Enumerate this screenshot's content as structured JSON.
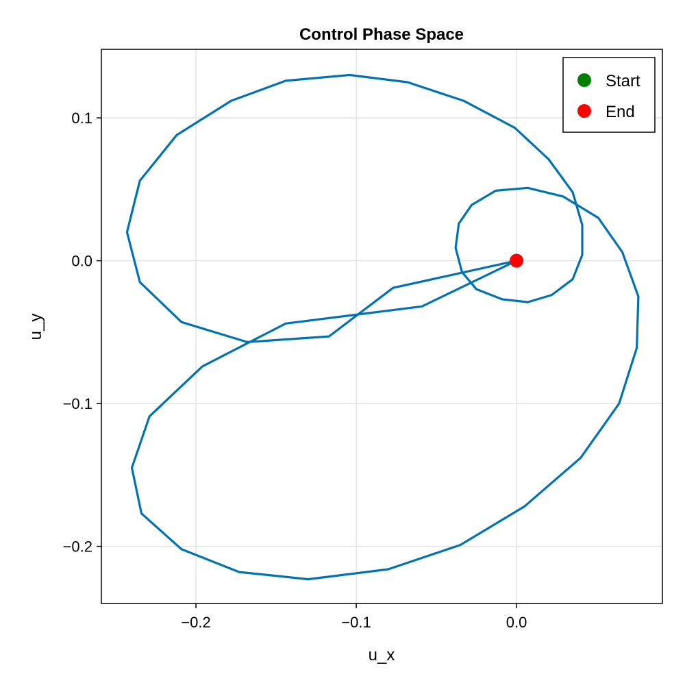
{
  "chart_data": {
    "type": "line",
    "title": "Control Phase Space",
    "xlabel": "u_x",
    "ylabel": "u_y",
    "xlim": [
      -0.259,
      0.091
    ],
    "ylim": [
      -0.24,
      0.148
    ],
    "xticks": [
      -0.2,
      -0.1,
      0.0
    ],
    "xtick_labels": [
      "−0.2",
      "−0.1",
      "0.0"
    ],
    "yticks": [
      -0.2,
      -0.1,
      0.0,
      0.1
    ],
    "ytick_labels": [
      "−0.2",
      "−0.1",
      "0.0",
      "0.1"
    ],
    "grid": true,
    "legend_position": "top-right",
    "colors": {
      "line": "#0072b2",
      "start": "#008000",
      "end": "#ff0000"
    },
    "series": [
      {
        "x": [
          0.0,
          -0.077,
          -0.117,
          -0.168,
          -0.209,
          -0.235,
          -0.243,
          -0.235,
          -0.212,
          -0.178,
          -0.144,
          -0.104,
          -0.068,
          -0.033,
          -0.001,
          0.02,
          0.035,
          0.041,
          0.041,
          0.035,
          0.022,
          0.007,
          -0.009,
          -0.025,
          -0.034,
          -0.038,
          -0.036,
          -0.028,
          -0.013,
          0.007,
          0.029,
          0.051,
          0.066,
          0.076,
          0.075,
          0.064,
          0.04,
          0.005,
          -0.035,
          -0.08,
          -0.13,
          -0.173,
          -0.209,
          -0.234,
          -0.24,
          -0.229,
          -0.196,
          -0.144,
          -0.059,
          0.0
        ],
        "y": [
          0.0,
          -0.019,
          -0.053,
          -0.057,
          -0.043,
          -0.015,
          0.02,
          0.056,
          0.088,
          0.112,
          0.126,
          0.13,
          0.125,
          0.112,
          0.093,
          0.071,
          0.048,
          0.025,
          0.004,
          -0.013,
          -0.024,
          -0.029,
          -0.027,
          -0.02,
          -0.008,
          0.009,
          0.026,
          0.039,
          0.049,
          0.051,
          0.045,
          0.03,
          0.006,
          -0.025,
          -0.061,
          -0.1,
          -0.138,
          -0.172,
          -0.199,
          -0.216,
          -0.223,
          -0.218,
          -0.202,
          -0.177,
          -0.145,
          -0.109,
          -0.074,
          -0.044,
          -0.032,
          0.0
        ]
      }
    ],
    "markers": [
      {
        "name": "Start",
        "x": 0.0,
        "y": 0.0
      },
      {
        "name": "End",
        "x": 0.0,
        "y": 0.0
      }
    ]
  }
}
